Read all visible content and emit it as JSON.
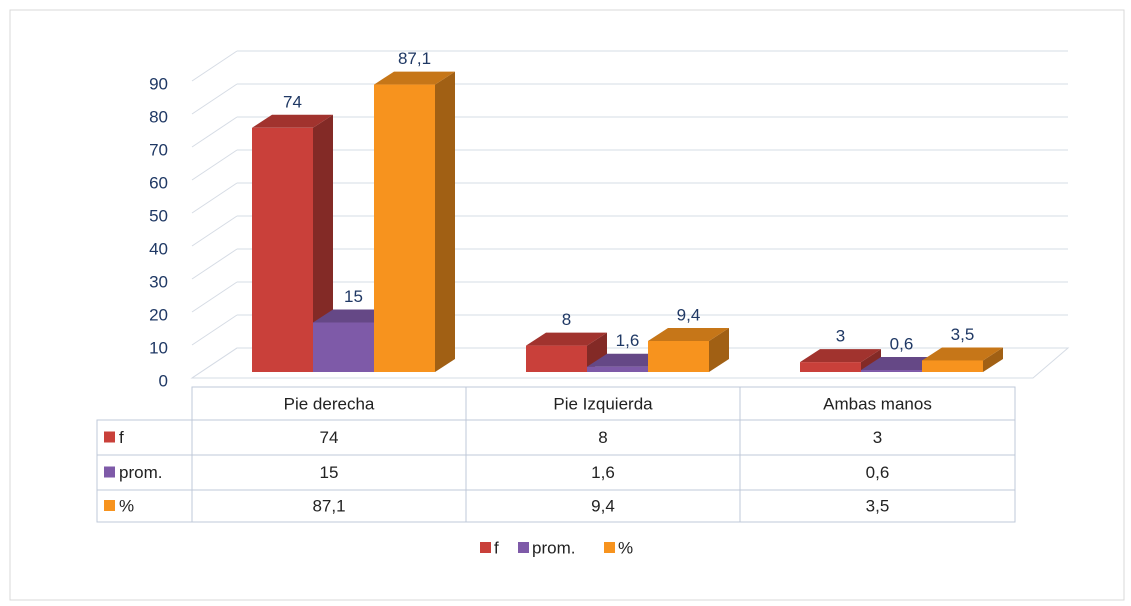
{
  "chart_data": {
    "type": "bar3d",
    "categories": [
      "Pie derecha",
      "Pie Izquierda",
      "Ambas manos"
    ],
    "series": [
      {
        "name": "f",
        "color": "#c9403a",
        "values": [
          74,
          8,
          3
        ],
        "value_labels": [
          "74",
          "8",
          "3"
        ]
      },
      {
        "name": "prom.",
        "color": "#7e5aa8",
        "values": [
          15,
          1.6,
          0.6
        ],
        "value_labels": [
          "15",
          "1,6",
          "0,6"
        ]
      },
      {
        "name": "%",
        "color": "#f7931e",
        "values": [
          87.1,
          9.4,
          3.5
        ],
        "value_labels": [
          "87,1",
          "9,4",
          "3,5"
        ]
      }
    ],
    "ylim": [
      0,
      90
    ],
    "yticks": [
      0,
      10,
      20,
      30,
      40,
      50,
      60,
      70,
      80,
      90
    ],
    "grid": true,
    "legend": "bottom"
  }
}
